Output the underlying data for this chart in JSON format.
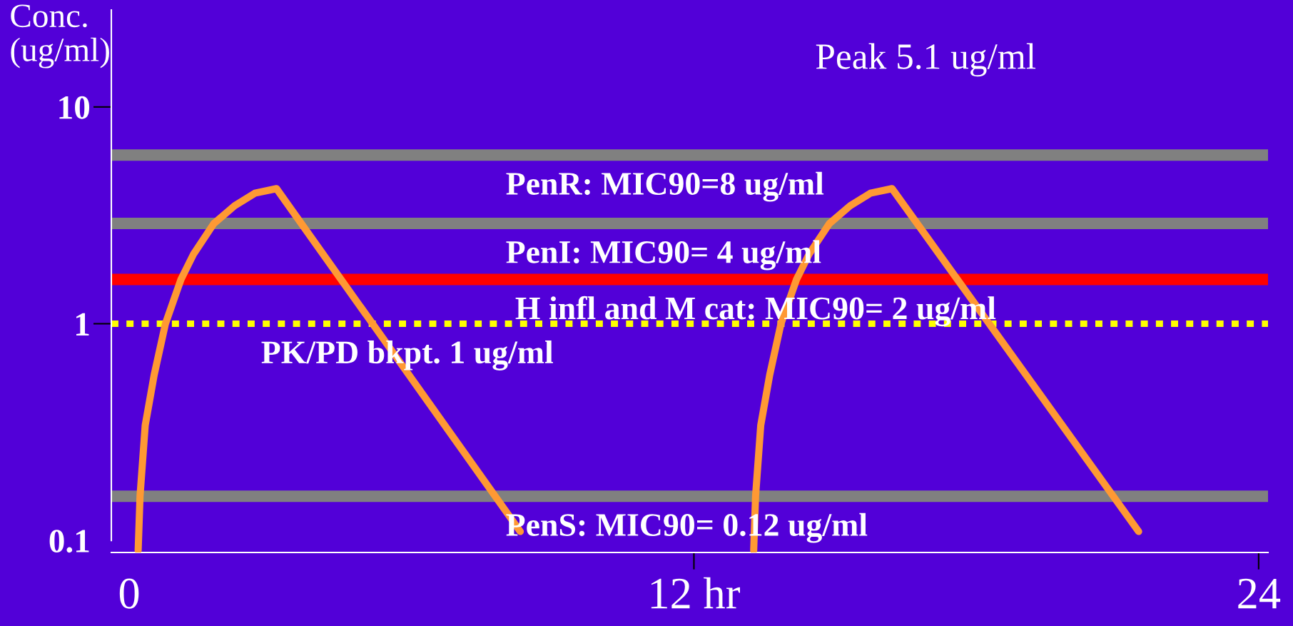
{
  "chart_data": {
    "type": "line",
    "ylabel": "Conc.\n(ug/ml)",
    "series": [
      {
        "color": "#ff9933",
        "x": [
          0.19,
          0.23,
          0.34,
          0.53,
          0.77,
          1.1,
          1.37,
          1.8,
          2.24,
          2.67,
          3.13,
          8.31,
          10.8,
          13.27,
          13.31,
          13.42,
          13.61,
          13.85,
          14.18,
          14.45,
          14.88,
          15.32,
          15.75,
          16.21,
          21.45
        ],
        "values": [
          0.09,
          0.16,
          0.34,
          0.58,
          1.0,
          1.6,
          2.1,
          2.9,
          3.5,
          4.0,
          4.2,
          0.11,
          null,
          0.09,
          0.16,
          0.34,
          0.58,
          1.0,
          1.6,
          2.1,
          2.9,
          3.5,
          4.0,
          4.2,
          0.11
        ]
      }
    ],
    "xlim": [
      -0.38,
      24.2
    ],
    "xticks": [
      0,
      {
        "value": 12,
        "label": "12 hr"
      },
      24
    ],
    "ylim": [
      0.088,
      28
    ],
    "yticks": [
      10,
      1,
      0.1
    ],
    "log": "y",
    "ref_lines": [
      {
        "axis": "y",
        "value": 6.0,
        "color": "#808080"
      },
      {
        "axis": "y",
        "value": 2.9,
        "color": "#808080"
      },
      {
        "axis": "y",
        "value": 1.6,
        "color": "#ff0000"
      },
      {
        "axis": "y",
        "value": 1.0,
        "color": "#ffff00",
        "line_style": "dotted"
      },
      {
        "axis": "y",
        "value": 0.16,
        "color": "#808080"
      }
    ],
    "annotations": [
      "Peak 5.1 ug/ml",
      {
        "text": "PenR: MIC90=8 ug/ml",
        "x": 8.0,
        "y": 6.0
      },
      {
        "text": "PenI: MIC90= 4 ug/ml",
        "x": 8.0,
        "y": 2.9
      },
      {
        "text": "H infl and M cat: MIC90= 2 ug/ml",
        "x": 8.2,
        "y": 1.6
      },
      {
        "text": "PK/PD bkpt. 1 ug/ml",
        "x": 2.8,
        "y": 1.0
      },
      {
        "text": "PenS: MIC90= 0.12 ug/ml",
        "x": 8.0,
        "y": 0.16
      }
    ]
  }
}
